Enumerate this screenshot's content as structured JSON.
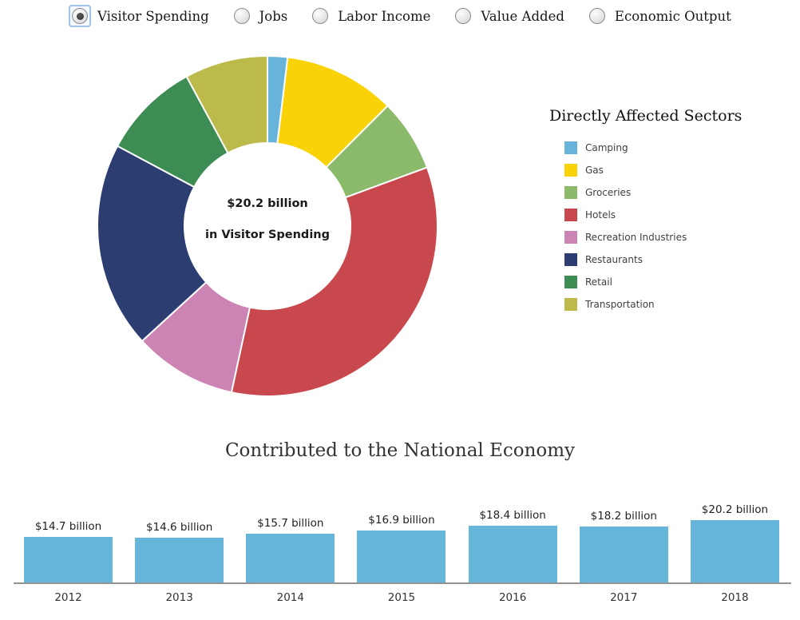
{
  "metric_selector": {
    "options": [
      {
        "label": "Visitor Spending",
        "selected": true
      },
      {
        "label": "Jobs",
        "selected": false
      },
      {
        "label": "Labor Income",
        "selected": false
      },
      {
        "label": "Value Added",
        "selected": false
      },
      {
        "label": "Economic Output",
        "selected": false
      }
    ]
  },
  "chart_data": [
    {
      "type": "pie",
      "variant": "donut",
      "legend_title": "Directly Affected Sectors",
      "legend_position": "right",
      "center_label_line1": "$20.2 billion",
      "center_label_line2": "in Visitor Spending",
      "series": [
        {
          "name": "Camping",
          "percent": 1.9,
          "color": "#67b3da"
        },
        {
          "name": "Gas",
          "percent": 10.6,
          "color": "#f9d207"
        },
        {
          "name": "Groceries",
          "percent": 6.9,
          "color": "#8bba6b"
        },
        {
          "name": "Hotels",
          "percent": 34.0,
          "color": "#c8484d"
        },
        {
          "name": "Recreation Industries",
          "percent": 9.8,
          "color": "#cc84b4"
        },
        {
          "name": "Restaurants",
          "percent": 19.6,
          "color": "#2c3d72"
        },
        {
          "name": "Retail",
          "percent": 9.3,
          "color": "#3c8c53"
        },
        {
          "name": "Transportation",
          "percent": 7.9,
          "color": "#bdba4c"
        }
      ]
    },
    {
      "type": "bar",
      "title": "Contributed to the National Economy",
      "categories": [
        "2012",
        "2013",
        "2014",
        "2015",
        "2016",
        "2017",
        "2018"
      ],
      "values": [
        14.7,
        14.6,
        15.7,
        16.9,
        18.4,
        18.2,
        20.2
      ],
      "data_labels": [
        "$14.7 billion",
        "$14.6 billion",
        "$15.7 billion",
        "$16.9 billion",
        "$18.4 billion",
        "$18.2 billion",
        "$20.2 billion"
      ],
      "bar_color": "#66b6dc",
      "xlabel": "",
      "ylabel": "",
      "ylim": [
        0,
        20.2
      ],
      "grid": false,
      "legend": false
    }
  ]
}
